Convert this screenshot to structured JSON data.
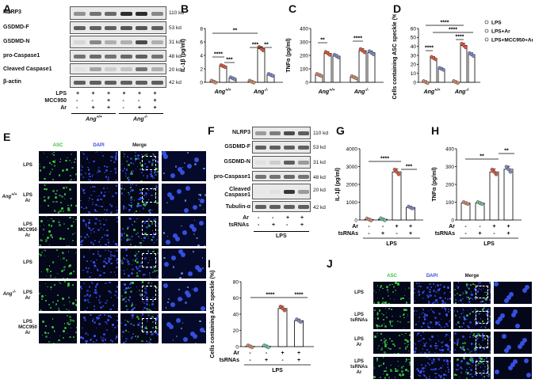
{
  "panels": {
    "A": {
      "letter": "A",
      "rows": [
        {
          "name": "NLRP3",
          "kd": "110 kd"
        },
        {
          "name": "GSDMD-F",
          "kd": "53 kd"
        },
        {
          "name": "GSDMD-N",
          "kd": "31 kd"
        },
        {
          "name": "pro-Caspase1",
          "kd": "48 kd"
        },
        {
          "name": "Cleaved Caspase1",
          "kd": "20 kd"
        },
        {
          "name": "β-actin",
          "kd": "42 kd"
        }
      ],
      "treat_labels": [
        "LPS",
        "MCC950",
        "Ar"
      ],
      "treat_signs": [
        [
          "+",
          "+",
          "+",
          "+",
          "+",
          "+"
        ],
        [
          "-",
          "-",
          "+",
          "-",
          "-",
          "+"
        ],
        [
          "-",
          "+",
          "+",
          "-",
          "+",
          "+"
        ]
      ],
      "genotypes": [
        "Ang+/+",
        "Ang-/-"
      ]
    },
    "B": {
      "letter": "B",
      "ylabel": "IL-1β (pg/ml)",
      "yticks": [
        "0",
        "2",
        "4",
        "6",
        "8"
      ],
      "xgroups": [
        "Ang+/+",
        "Ang-/-"
      ],
      "sig": [
        "****",
        "***",
        "**",
        "***",
        "**"
      ]
    },
    "C": {
      "letter": "C",
      "ylabel": "TNFα (pg/ml)",
      "yticks": [
        "0",
        "100",
        "200",
        "300",
        "400"
      ],
      "xgroups": [
        "Ang+/+",
        "Ang-/-"
      ],
      "sig": [
        "**",
        "****"
      ]
    },
    "D": {
      "letter": "D",
      "ylabel": "Cells containing ASC speckle (%)",
      "yticks": [
        "0",
        "10",
        "20",
        "30",
        "40",
        "50",
        "60"
      ],
      "xgroups": [
        "Ang+/+",
        "Ang-/-"
      ],
      "sig": [
        "****",
        "****",
        "****",
        "****"
      ],
      "legend": [
        "LPS",
        "LPS+Ar",
        "LPS+MCC950+Ar"
      ]
    },
    "E": {
      "letter": "E",
      "headers": [
        "ASC",
        "DAPI",
        "Merge"
      ],
      "groups": [
        "Ang+/+",
        "Ang-/-"
      ],
      "rows": [
        [
          "LPS"
        ],
        [
          "LPS",
          "Ar"
        ],
        [
          "LPS",
          "MCC950",
          "Ar"
        ],
        [
          "LPS"
        ],
        [
          "LPS",
          "Ar"
        ],
        [
          "LPS",
          "MCC950",
          "Ar"
        ]
      ]
    },
    "F": {
      "letter": "F",
      "rows": [
        {
          "name": "NLRP3",
          "kd": "110 kd"
        },
        {
          "name": "GSDMD-F",
          "kd": "53 kd"
        },
        {
          "name": "GSDMD-N",
          "kd": "31 kd"
        },
        {
          "name": "pro-Caspase1",
          "kd": "48 kd"
        },
        {
          "name": "Cleaved Caspase1",
          "kd": "20 kd"
        },
        {
          "name": "Tubulin-α",
          "kd": "42 kd"
        }
      ],
      "treat_labels": [
        "Ar",
        "tsRNAs"
      ],
      "treat_signs": [
        [
          "-",
          "-",
          "+",
          "+"
        ],
        [
          "-",
          "+",
          "-",
          "+"
        ]
      ],
      "footer": "LPS"
    },
    "G": {
      "letter": "G",
      "ylabel": "IL-1β (pg/ml)",
      "yticks": [
        "0",
        "1000",
        "2000",
        "3000",
        "4000"
      ],
      "sig": [
        "****",
        "***"
      ],
      "treat_labels": [
        "Ar",
        "tsRNAs"
      ],
      "footer": "LPS"
    },
    "H": {
      "letter": "H",
      "ylabel": "TNFα (pg/ml)",
      "yticks": [
        "0",
        "100",
        "200",
        "300",
        "400"
      ],
      "sig": [
        "**",
        "**"
      ],
      "treat_labels": [
        "Ar",
        "tsRNAs"
      ],
      "footer": "LPS"
    },
    "I": {
      "letter": "I",
      "ylabel": "Cells containing ASC speckle (%)",
      "yticks": [
        "0",
        "20",
        "40",
        "60",
        "80"
      ],
      "sig": [
        "****",
        "****"
      ],
      "treat_labels": [
        "Ar",
        "tsRNAs"
      ],
      "footer": "LPS"
    },
    "J": {
      "letter": "J",
      "headers": [
        "ASC",
        "DAPI",
        "Merge"
      ],
      "rows": [
        [
          "LPS"
        ],
        [
          "LPS",
          "tsRNAs"
        ],
        [
          "LPS",
          "Ar"
        ],
        [
          "LPS",
          "tsRNAs",
          "Ar"
        ]
      ]
    }
  },
  "colors": {
    "lps": "#c9896a",
    "ar": "#d9583f",
    "mcc": "#7f88c0",
    "ctrl": "#c9896a",
    "ts": "#6fbf9a",
    "tsar": "#7f88c0"
  },
  "chart_data": [
    {
      "panel": "B",
      "type": "bar",
      "title": "",
      "ylabel": "IL-1β (pg/ml)",
      "ylim": [
        0,
        8
      ],
      "categories": [
        "Ang+/+",
        "Ang-/-"
      ],
      "series": [
        {
          "name": "LPS",
          "values": [
            0.1,
            0.1
          ]
        },
        {
          "name": "LPS+Ar",
          "values": [
            2.4,
            5.0
          ]
        },
        {
          "name": "LPS+MCC950+Ar",
          "values": [
            0.6,
            1.1
          ]
        }
      ]
    },
    {
      "panel": "C",
      "type": "bar",
      "title": "",
      "ylabel": "TNFα (pg/ml)",
      "ylim": [
        0,
        400
      ],
      "categories": [
        "Ang+/+",
        "Ang-/-"
      ],
      "series": [
        {
          "name": "LPS",
          "values": [
            55,
            38
          ]
        },
        {
          "name": "LPS+Ar",
          "values": [
            215,
            235
          ]
        },
        {
          "name": "LPS+MCC950+Ar",
          "values": [
            195,
            220
          ]
        }
      ]
    },
    {
      "panel": "D",
      "type": "bar",
      "title": "",
      "ylabel": "Cells containing ASC speckle (%)",
      "ylim": [
        0,
        60
      ],
      "categories": [
        "Ang+/+",
        "Ang-/-"
      ],
      "series": [
        {
          "name": "LPS",
          "values": [
            0.3,
            0.3
          ]
        },
        {
          "name": "LPS+Ar",
          "values": [
            27,
            41
          ]
        },
        {
          "name": "LPS+MCC950+Ar",
          "values": [
            15,
            31
          ]
        }
      ]
    },
    {
      "panel": "G",
      "type": "bar",
      "title": "",
      "ylabel": "IL-1β (pg/ml)",
      "ylim": [
        0,
        4000
      ],
      "categories": [
        "1",
        "2",
        "3",
        "4"
      ],
      "series": [
        {
          "values": [
            30,
            40,
            2700,
            700
          ]
        }
      ]
    },
    {
      "panel": "H",
      "type": "bar",
      "title": "",
      "ylabel": "TNFα (pg/ml)",
      "ylim": [
        0,
        400
      ],
      "categories": [
        "1",
        "2",
        "3",
        "4"
      ],
      "series": [
        {
          "values": [
            95,
            95,
            270,
            285
          ]
        }
      ]
    },
    {
      "panel": "I",
      "type": "bar",
      "title": "",
      "ylabel": "Cells containing ASC speckle (%)",
      "ylim": [
        0,
        80
      ],
      "categories": [
        "1",
        "2",
        "3",
        "4"
      ],
      "series": [
        {
          "values": [
            0.3,
            0.3,
            47,
            32
          ]
        }
      ]
    }
  ]
}
